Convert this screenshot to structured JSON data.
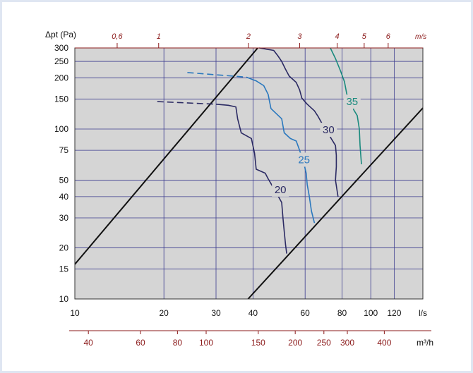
{
  "chart_data": {
    "type": "line",
    "title": "",
    "ylabel": "Δpt (Pa)",
    "y_scale": "log",
    "x_scale": "log",
    "ylim": [
      10,
      300
    ],
    "xlim": [
      10,
      150
    ],
    "y_ticks": [
      10,
      15,
      20,
      30,
      40,
      50,
      75,
      100,
      150,
      200,
      250,
      300
    ],
    "x_ticks": [
      10,
      20,
      30,
      40,
      60,
      80,
      100,
      120
    ],
    "x_unit_label": "l/s",
    "x2_unit_label": "m³/h",
    "x2_ticks": [
      40,
      60,
      80,
      100,
      150,
      200,
      250,
      300,
      400
    ],
    "x2_tick_labels": [
      "40",
      "60",
      "80",
      "100",
      "150",
      "200",
      "250",
      "300",
      "400"
    ],
    "velocity_unit_label": "m/s",
    "velocity_tick_labels": [
      "0,6",
      "1",
      "2",
      "3",
      "4",
      "5",
      "6"
    ],
    "velocity_tick_flows": [
      13.9,
      19.2,
      38.6,
      57.5,
      77.0,
      95.0,
      114.5
    ],
    "grid": true,
    "series": [
      {
        "name": "20",
        "label": "20",
        "color": "#2b2a63",
        "dashed_part": [
          [
            19.0,
            145
          ],
          [
            30.0,
            140
          ]
        ],
        "points": [
          [
            30.0,
            140
          ],
          [
            33.0,
            138
          ],
          [
            35.0,
            135
          ],
          [
            35.5,
            115
          ],
          [
            36.5,
            95
          ],
          [
            39.5,
            88
          ],
          [
            40.5,
            72
          ],
          [
            41.0,
            58
          ],
          [
            44.0,
            55
          ],
          [
            45.0,
            51
          ],
          [
            48.0,
            42
          ],
          [
            50.0,
            37
          ],
          [
            50.5,
            30
          ],
          [
            51.0,
            25
          ],
          [
            51.5,
            21
          ],
          [
            52.0,
            18.5
          ]
        ],
        "label_at": [
          49.5,
          44
        ]
      },
      {
        "name": "25",
        "label": "25",
        "color": "#2a78be",
        "dashed_part": [
          [
            24.0,
            215
          ],
          [
            38.0,
            202
          ]
        ],
        "points": [
          [
            38.0,
            202
          ],
          [
            41.0,
            192
          ],
          [
            43.5,
            180
          ],
          [
            45.0,
            160
          ],
          [
            46.0,
            132
          ],
          [
            47.5,
            125
          ],
          [
            50.0,
            115
          ],
          [
            51.0,
            95
          ],
          [
            53.5,
            88
          ],
          [
            56.0,
            85
          ],
          [
            57.5,
            75
          ],
          [
            59.5,
            62
          ],
          [
            60.5,
            55
          ],
          [
            61.0,
            47
          ],
          [
            62.0,
            40
          ],
          [
            63.0,
            33
          ],
          [
            64.5,
            28
          ]
        ],
        "label_at": [
          59.5,
          66
        ]
      },
      {
        "name": "30",
        "label": "30",
        "color": "#2b2a63",
        "points": [
          [
            42.0,
            300
          ],
          [
            47.0,
            290
          ],
          [
            48.5,
            270
          ],
          [
            50.0,
            250
          ],
          [
            51.5,
            225
          ],
          [
            53.0,
            205
          ],
          [
            56.0,
            188
          ],
          [
            57.5,
            170
          ],
          [
            58.5,
            152
          ],
          [
            61.0,
            140
          ],
          [
            64.5,
            128
          ],
          [
            66.5,
            118
          ],
          [
            69.0,
            105
          ],
          [
            71.0,
            98
          ],
          [
            73.5,
            88
          ],
          [
            76.0,
            80
          ],
          [
            76.5,
            70
          ],
          [
            76.5,
            60
          ],
          [
            76.0,
            50
          ],
          [
            77.5,
            40
          ]
        ],
        "label_at": [
          72.0,
          99
        ]
      },
      {
        "name": "35",
        "label": "35",
        "color": "#1a8a7e",
        "points": [
          [
            73.0,
            300
          ],
          [
            76.0,
            260
          ],
          [
            79.0,
            220
          ],
          [
            81.5,
            190
          ],
          [
            83.0,
            160
          ],
          [
            86.5,
            150
          ],
          [
            87.5,
            130
          ],
          [
            90.0,
            120
          ],
          [
            91.5,
            100
          ],
          [
            92.0,
            80
          ],
          [
            93.0,
            62
          ]
        ],
        "label_at": [
          86.5,
          145
        ]
      }
    ],
    "system_lines": [
      {
        "from": [
          10,
          16
        ],
        "to": [
          41.5,
          300
        ]
      },
      {
        "from": [
          38.5,
          10
        ],
        "to": [
          150,
          133
        ]
      }
    ]
  }
}
